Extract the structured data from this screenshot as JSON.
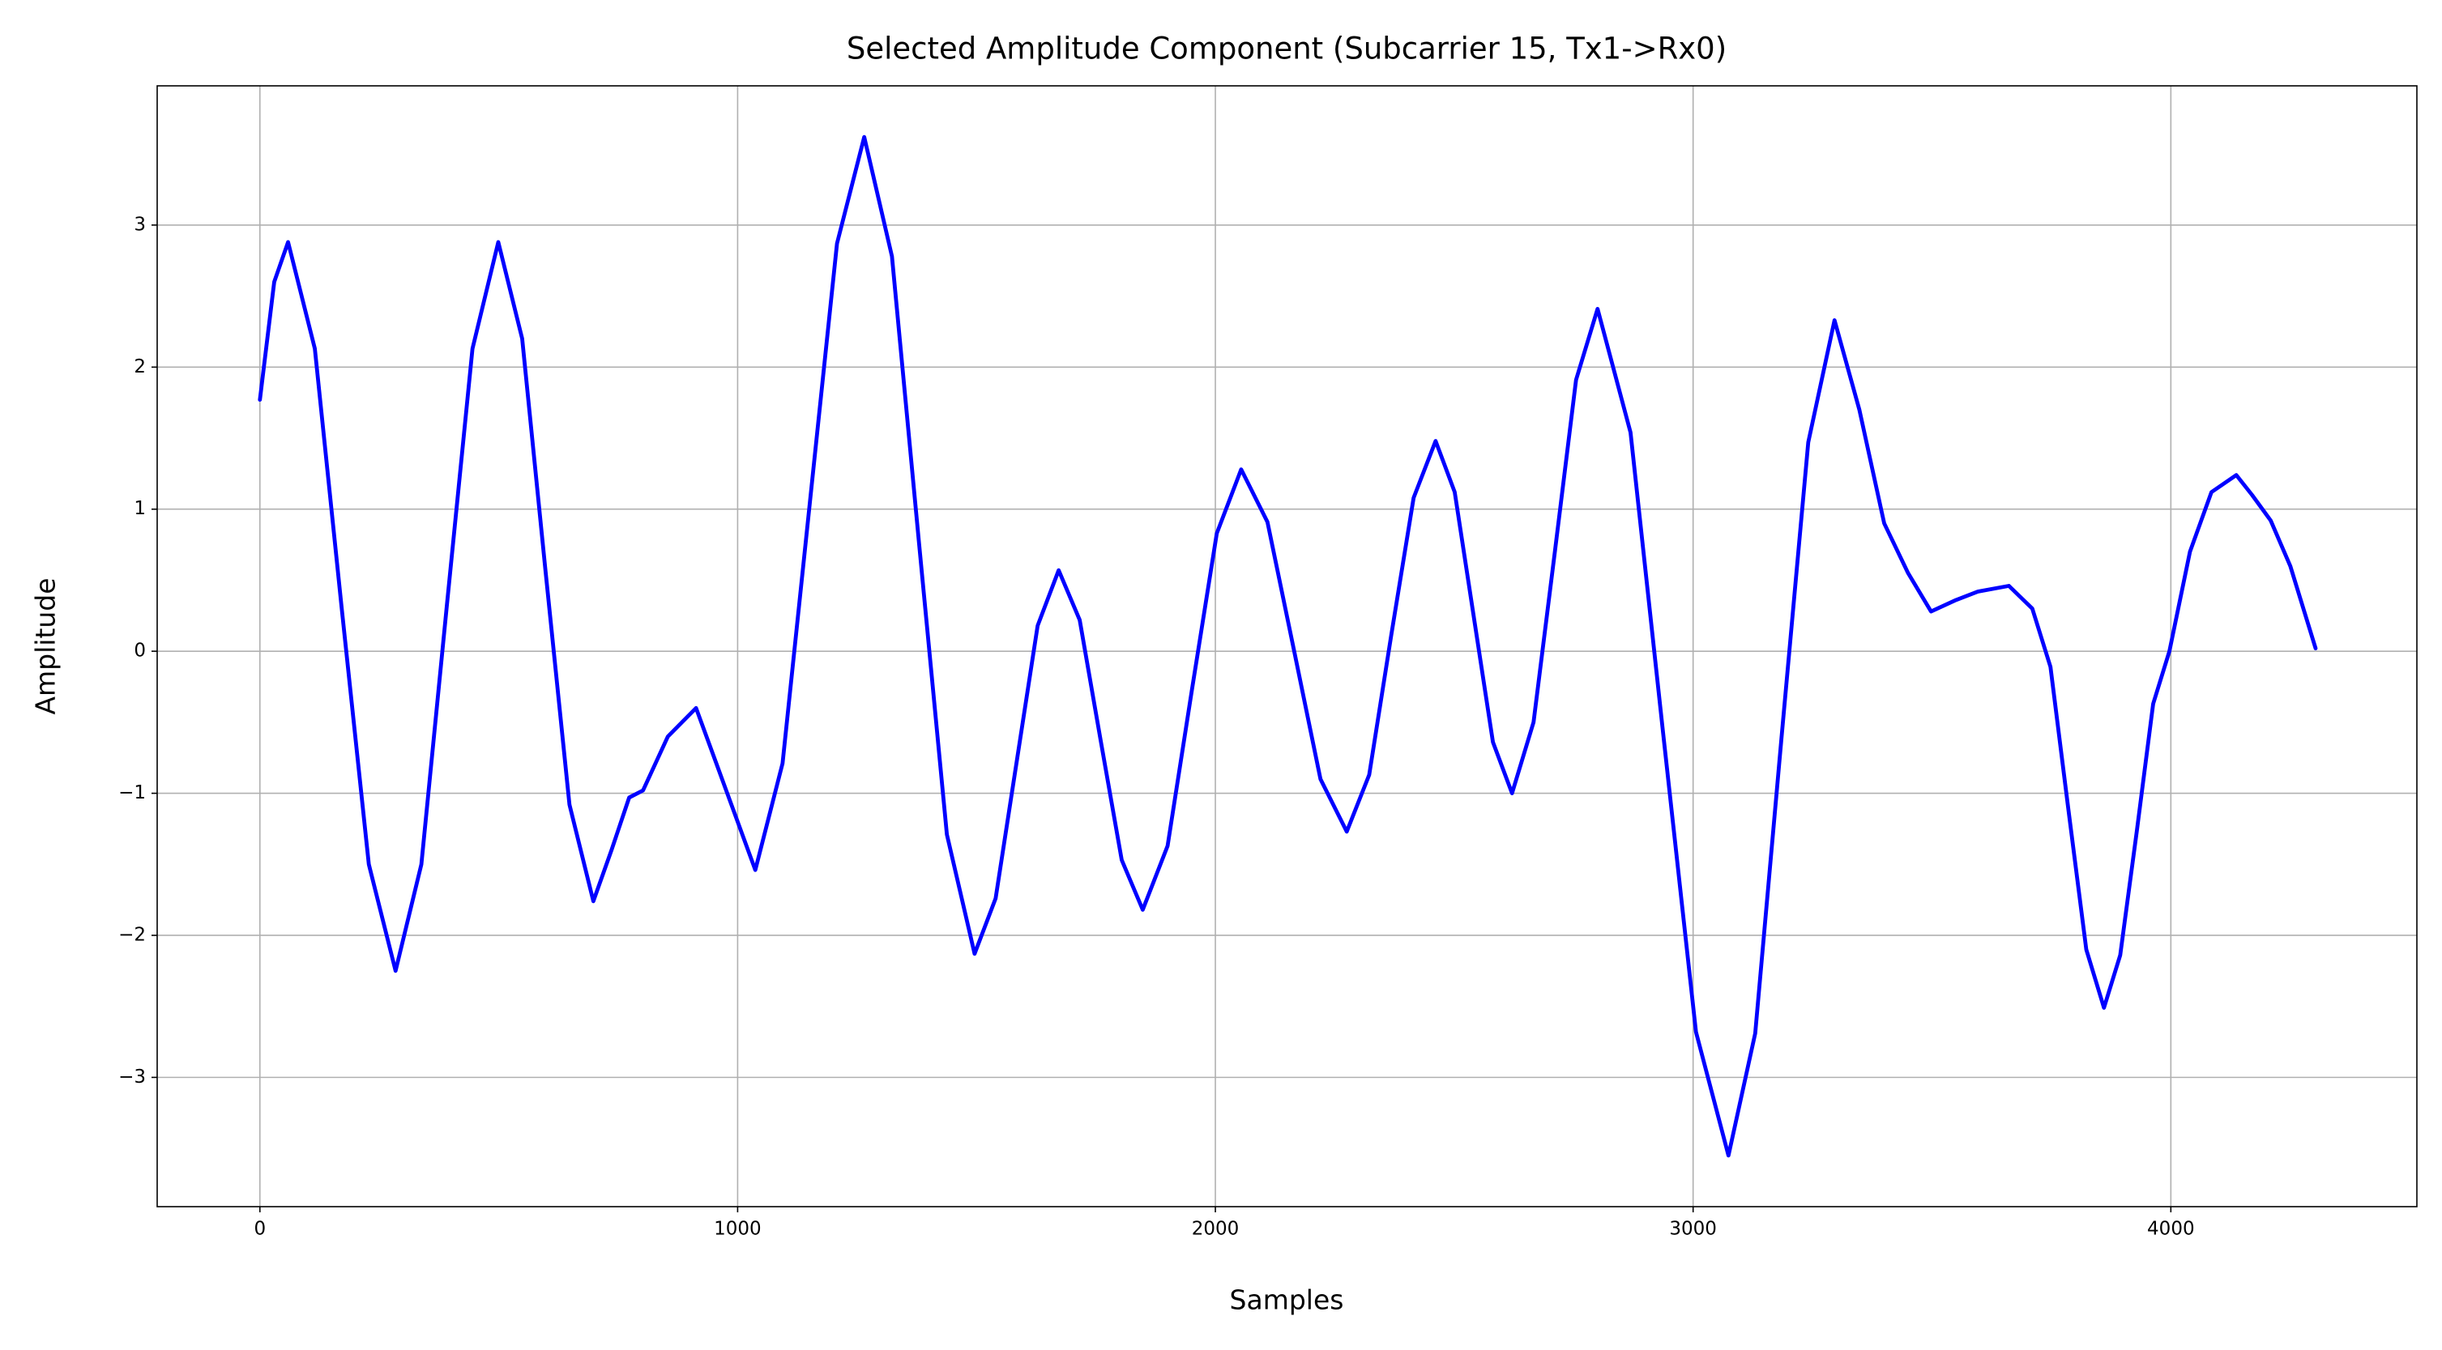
{
  "chart_data": {
    "type": "line",
    "title": "Selected Amplitude Component (Subcarrier 15, Tx1->Rx0)",
    "x_label": "Samples",
    "y_label": "Amplitude",
    "x": [
      0,
      30,
      59,
      115,
      171,
      228,
      284,
      338,
      391,
      445,
      499,
      549,
      598,
      648,
      698,
      736,
      773,
      802,
      854,
      913,
      975,
      1037,
      1094,
      1151,
      1208,
      1265,
      1323,
      1380,
      1438,
      1496,
      1540,
      1584,
      1628,
      1672,
      1716,
      1760,
      1804,
      1848,
      1900,
      1951,
      2003,
      2054,
      2109,
      2165,
      2220,
      2275,
      2322,
      2368,
      2415,
      2461,
      2501,
      2541,
      2581,
      2621,
      2666,
      2711,
      2755,
      2800,
      2869,
      2937,
      3006,
      3074,
      3130,
      3185,
      3241,
      3296,
      3348,
      3400,
      3450,
      3498,
      3550,
      3596,
      3661,
      3710,
      3748,
      3785,
      3823,
      3860,
      3894,
      3929,
      3963,
      3997,
      4040,
      4085,
      4137,
      4170,
      4209,
      4250,
      4303
    ],
    "series": [
      {
        "name": "Amplitude",
        "color": "#0000ff",
        "values": [
          1.77,
          2.6,
          2.88,
          2.13,
          0.31,
          -1.5,
          -2.25,
          -1.5,
          0.31,
          2.13,
          2.88,
          2.2,
          0.56,
          -1.08,
          -1.76,
          -1.4,
          -1.03,
          -0.98,
          -0.6,
          -0.4,
          -0.97,
          -1.54,
          -0.79,
          1.04,
          2.87,
          3.62,
          2.78,
          0.75,
          -1.29,
          -2.13,
          -1.74,
          -0.78,
          0.18,
          0.57,
          0.22,
          -0.63,
          -1.47,
          -1.82,
          -1.37,
          -0.27,
          0.83,
          1.28,
          0.91,
          0.0,
          -0.9,
          -1.27,
          -0.87,
          0.11,
          1.08,
          1.48,
          1.12,
          0.24,
          -0.64,
          -1.0,
          -0.5,
          0.71,
          1.91,
          2.41,
          1.54,
          -0.57,
          -2.68,
          -3.55,
          -2.69,
          -0.61,
          1.47,
          2.33,
          1.7,
          0.9,
          0.55,
          0.28,
          0.36,
          0.42,
          0.46,
          0.3,
          -0.11,
          -1.1,
          -2.1,
          -2.51,
          -2.14,
          -1.26,
          -0.37,
          0,
          0.7,
          1.12,
          1.24,
          1.1,
          0.92,
          0.6,
          0.02
        ]
      }
    ],
    "xlim": [
      -215,
      4515
    ],
    "xticks": [
      0,
      1000,
      2000,
      3000,
      4000
    ],
    "ylim": [
      -3.91,
      3.98
    ],
    "yticks": [
      {
        "value": -3,
        "label": "−3"
      },
      {
        "value": -2,
        "label": "−2"
      },
      {
        "value": -1,
        "label": "−1"
      },
      0,
      1,
      2,
      3
    ],
    "grid": true
  }
}
